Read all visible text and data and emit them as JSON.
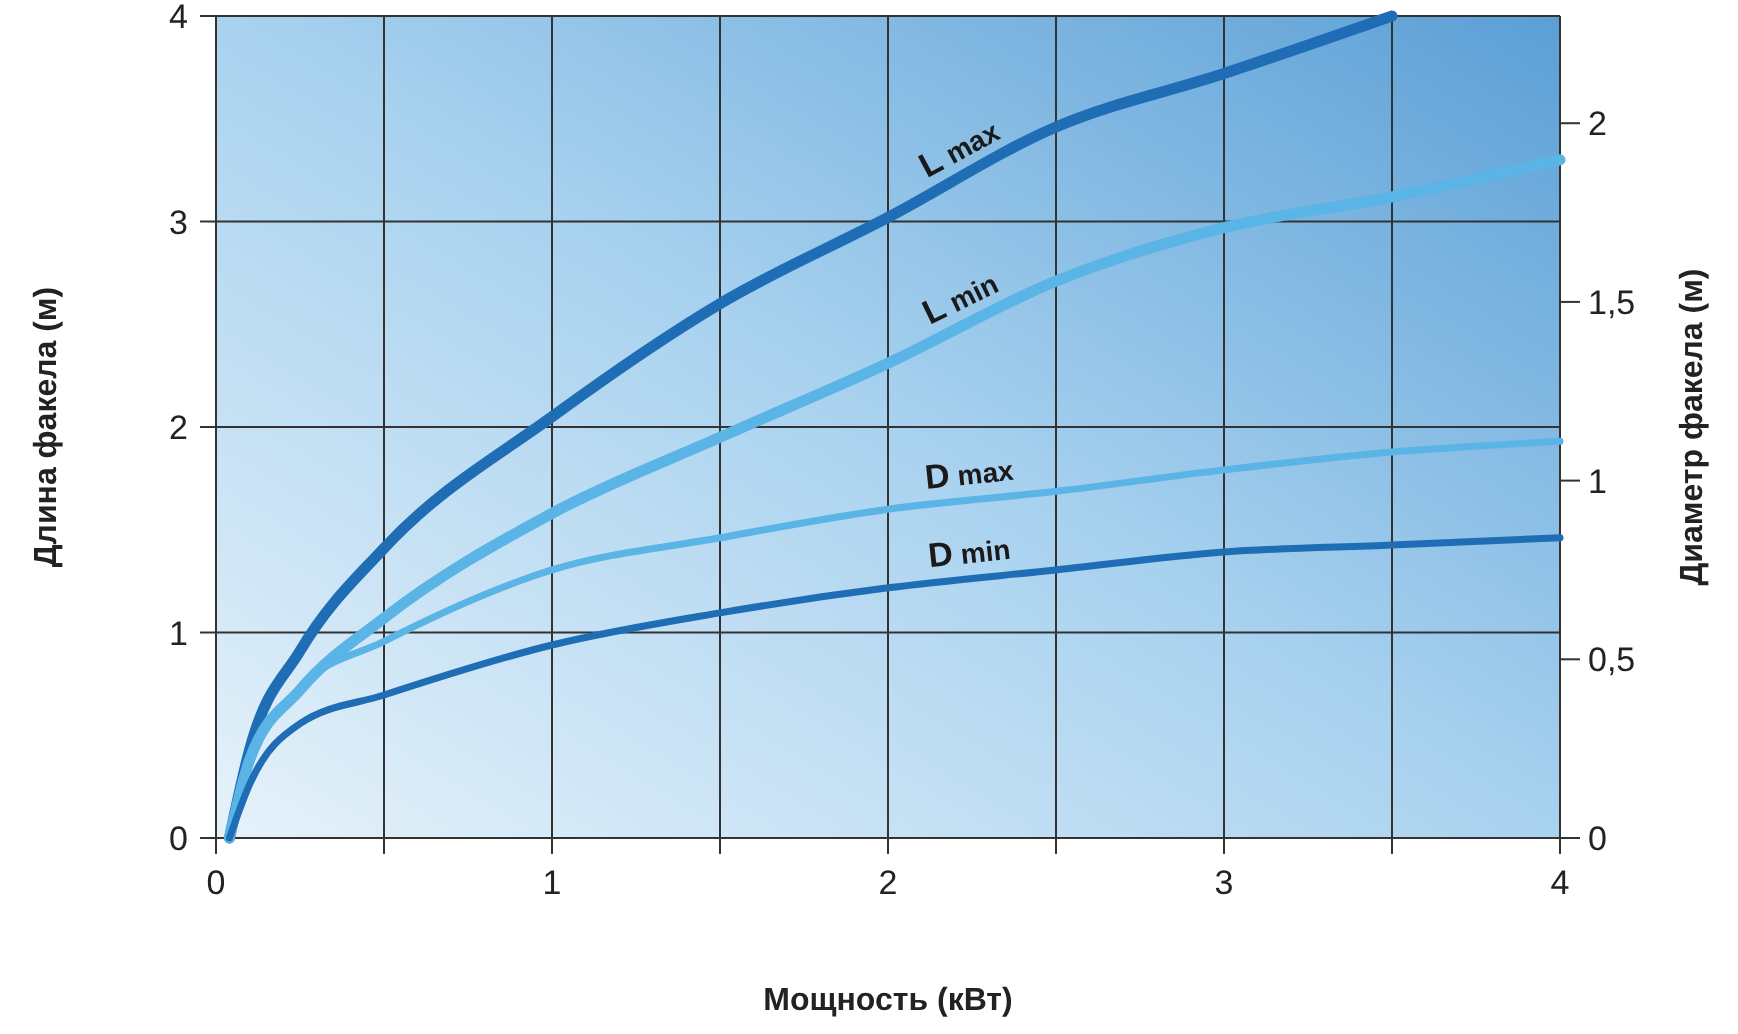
{
  "chart_data": {
    "type": "line",
    "xlabel": "Мощность (кВт)",
    "ylabel": "Длина факела (м)",
    "y2label": "Диаметр факела (м)",
    "xlim": [
      0,
      4
    ],
    "xticks": [
      0,
      {
        "value": 0.5,
        "label": null
      },
      1,
      {
        "value": 1.5,
        "label": null
      },
      2,
      {
        "value": 2.5,
        "label": null
      },
      3,
      {
        "value": 3.5,
        "label": null
      },
      4
    ],
    "ylim": [
      0,
      4
    ],
    "yticks": [
      0,
      1,
      2,
      3,
      4
    ],
    "y2lim": [
      0,
      2.3
    ],
    "y2ticks": [
      0,
      {
        "value": 0.5,
        "label": "0,5"
      },
      1,
      {
        "value": 1.5,
        "label": "1,5"
      },
      2
    ],
    "grid": true,
    "marker": "none",
    "line_style": "solid",
    "series": [
      {
        "name": "L max",
        "color": "#1f6db5",
        "x": [
          0.04,
          0.1,
          0.25,
          0.5,
          1,
          1.5,
          2,
          2.5,
          3,
          3.5
        ],
        "values": [
          0,
          0.43,
          0.91,
          1.41,
          2.05,
          2.6,
          3.02,
          3.46,
          3.72,
          4.0
        ]
      },
      {
        "name": "L min",
        "color": "#5ab4e5",
        "x": [
          0.04,
          0.1,
          0.25,
          0.5,
          1,
          1.5,
          2,
          2.5,
          3,
          3.5,
          4
        ],
        "values": [
          0,
          0.38,
          0.72,
          1.07,
          1.58,
          1.95,
          2.31,
          2.71,
          2.97,
          3.12,
          3.3
        ]
      },
      {
        "name": "D max",
        "color": "#5ab4e5",
        "axis": "y2",
        "x": [
          0.04,
          0.1,
          0.25,
          0.5,
          1,
          1.5,
          2,
          2.5,
          3,
          3.5,
          4
        ],
        "values": [
          0,
          0.21,
          0.42,
          0.55,
          0.75,
          0.84,
          0.92,
          0.97,
          1.03,
          1.08,
          1.11
        ]
      },
      {
        "name": "D min",
        "color": "#1f6db5",
        "axis": "y2",
        "x": [
          0.04,
          0.1,
          0.25,
          0.5,
          1,
          1.5,
          2,
          2.5,
          3,
          3.5,
          4
        ],
        "values": [
          0,
          0.15,
          0.32,
          0.4,
          0.54,
          0.63,
          0.7,
          0.75,
          0.8,
          0.82,
          0.84
        ]
      }
    ]
  }
}
